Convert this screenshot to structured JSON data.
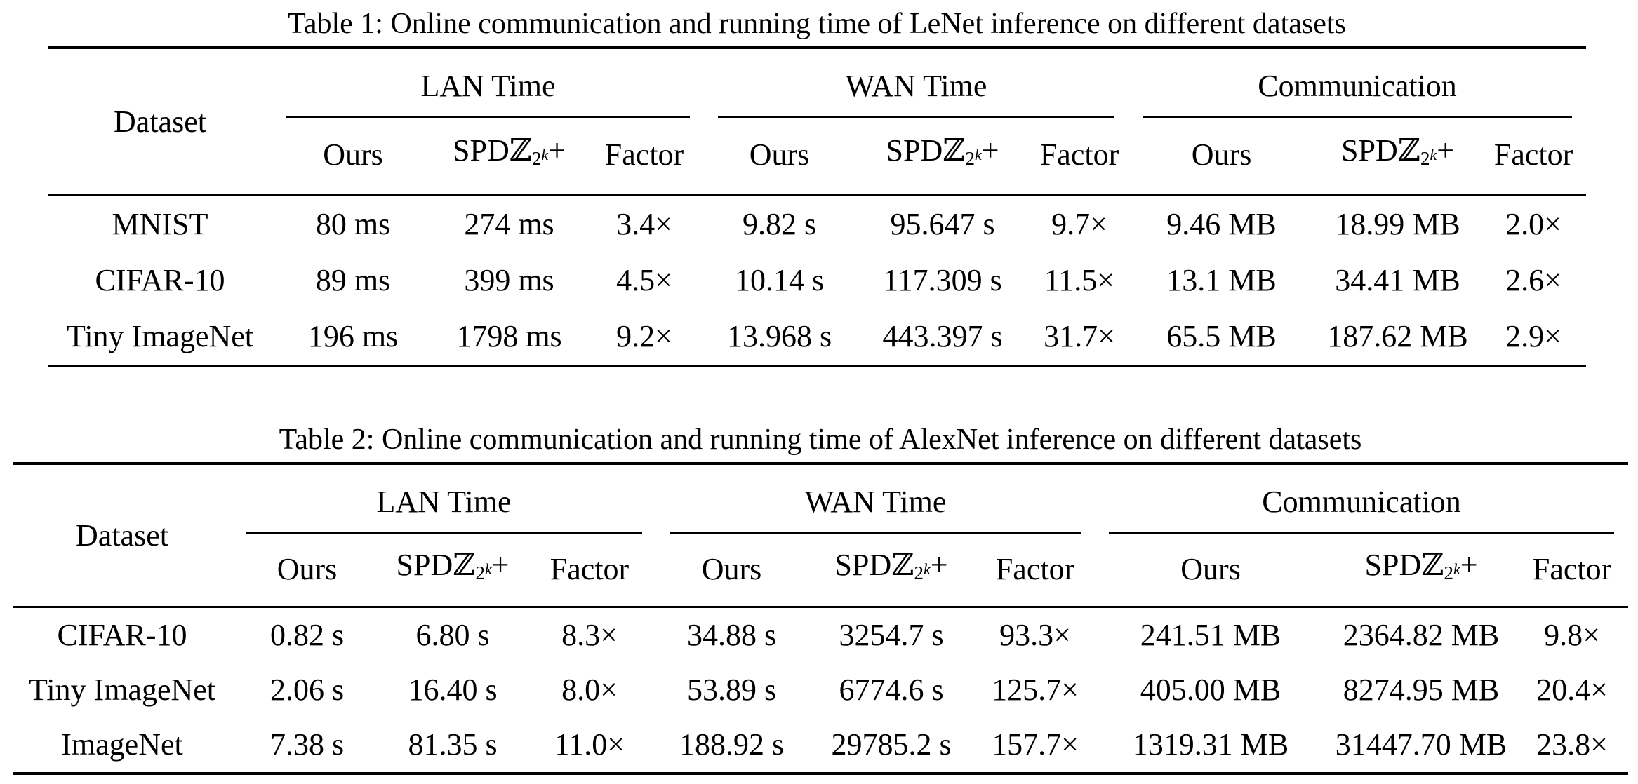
{
  "colors": {
    "background": "#ffffff",
    "text": "#000000",
    "rule": "#000000"
  },
  "tables": [
    {
      "caption": "Table 1: Online communication and running time of LeNet inference on different datasets",
      "dataset_header": "Dataset",
      "groups": [
        "LAN Time",
        "WAN Time",
        "Communication"
      ],
      "subcols": {
        "ours": "Ours",
        "factor": "Factor"
      },
      "spdz": {
        "text": "SPDℤ",
        "sub_base": "2",
        "sub_exp": "k",
        "plus": "+"
      },
      "rows": [
        {
          "dataset": "MNIST",
          "values": [
            "80 ms",
            "274 ms",
            "3.4×",
            "9.82 s",
            "95.647 s",
            "9.7×",
            "9.46 MB",
            "18.99 MB",
            "2.0×"
          ]
        },
        {
          "dataset": "CIFAR-10",
          "values": [
            "89 ms",
            "399 ms",
            "4.5×",
            "10.14 s",
            "117.309 s",
            "11.5×",
            "13.1 MB",
            "34.41 MB",
            "2.6×"
          ]
        },
        {
          "dataset": "Tiny ImageNet",
          "values": [
            "196 ms",
            "1798 ms",
            "9.2×",
            "13.968 s",
            "443.397 s",
            "31.7×",
            "65.5 MB",
            "187.62 MB",
            "2.9×"
          ]
        }
      ]
    },
    {
      "caption": "Table 2: Online communication and running time of AlexNet inference on different datasets",
      "dataset_header": "Dataset",
      "groups": [
        "LAN Time",
        "WAN Time",
        "Communication"
      ],
      "subcols": {
        "ours": "Ours",
        "factor": "Factor"
      },
      "spdz": {
        "text": "SPDℤ",
        "sub_base": "2",
        "sub_exp": "k",
        "plus": "+"
      },
      "rows": [
        {
          "dataset": "CIFAR-10",
          "values": [
            "0.82 s",
            "6.80 s",
            "8.3×",
            "34.88 s",
            "3254.7 s",
            "93.3×",
            "241.51 MB",
            "2364.82 MB",
            "9.8×"
          ]
        },
        {
          "dataset": "Tiny ImageNet",
          "values": [
            "2.06 s",
            "16.40 s",
            "8.0×",
            "53.89 s",
            "6774.6 s",
            "125.7×",
            "405.00 MB",
            "8274.95 MB",
            "20.4×"
          ]
        },
        {
          "dataset": "ImageNet",
          "values": [
            "7.38 s",
            "81.35 s",
            "11.0×",
            "188.92 s",
            "29785.2 s",
            "157.7×",
            "1319.31 MB",
            "31447.70 MB",
            "23.8×"
          ]
        }
      ]
    }
  ]
}
